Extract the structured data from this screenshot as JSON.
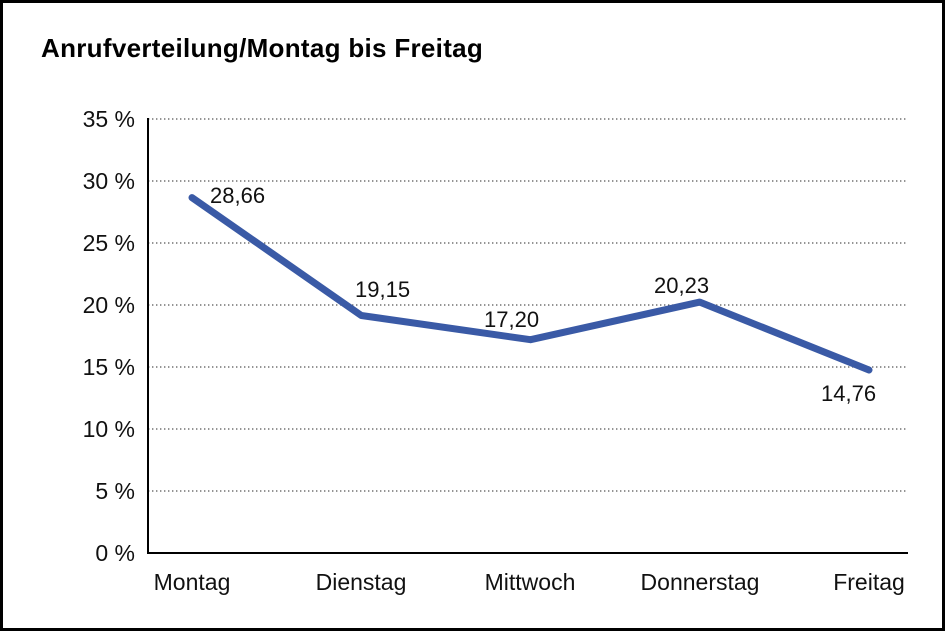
{
  "page": {
    "title": "Anrufverteilung/Montag bis Freitag"
  },
  "chart_data": {
    "type": "line",
    "title": "Anrufverteilung/Montag bis Freitag",
    "categories": [
      "Montag",
      "Dienstag",
      "Mittwoch",
      "Donnerstag",
      "Freitag"
    ],
    "series": [
      {
        "name": "Anrufverteilung",
        "values": [
          28.66,
          19.15,
          17.2,
          20.23,
          14.76
        ]
      }
    ],
    "value_labels": [
      "28,66",
      "19,15",
      "17,20",
      "20,23",
      "14,76"
    ],
    "y_tick_labels": [
      "35 %",
      "30 %",
      "25 %",
      "20 %",
      "15 %",
      "10 %",
      "5 %",
      "0 %"
    ],
    "ylim": [
      0,
      35
    ],
    "y_step": 5,
    "xlabel": "",
    "ylabel": "",
    "grid": "horizontal-dotted",
    "legend": "none",
    "line_color": "#3A5AA6",
    "axis_color": "#000000",
    "gridline_color": "#555555"
  }
}
